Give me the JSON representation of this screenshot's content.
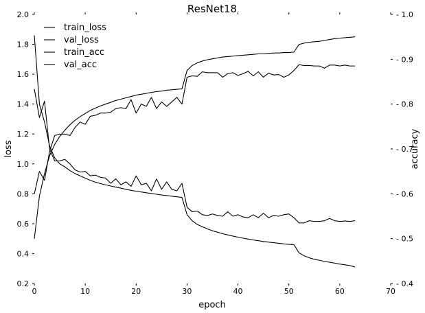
{
  "chart_data": {
    "type": "line",
    "title": "ResNet18",
    "xlabel": "epoch",
    "ylabel_left": "loss",
    "ylabel_right": "accuracy",
    "xlim": [
      0,
      70
    ],
    "ylim_left": [
      0.2,
      2.0
    ],
    "ylim_right": [
      0.4,
      1.0
    ],
    "xticks": [
      0,
      10,
      20,
      30,
      40,
      50,
      60,
      70
    ],
    "yticks_left": [
      0.2,
      0.4,
      0.6,
      0.8,
      1.0,
      1.2,
      1.4,
      1.6,
      1.8,
      2.0
    ],
    "yticks_right": [
      0.4,
      0.5,
      0.6,
      0.7,
      0.8,
      0.9,
      1.0
    ],
    "grid": false,
    "legend_position": "top-left",
    "line_color": "#000000",
    "series": [
      {
        "name": "train_loss",
        "axis": "left",
        "x": [
          0,
          1,
          2,
          3,
          4,
          5,
          6,
          7,
          8,
          9,
          10,
          11,
          12,
          13,
          14,
          15,
          16,
          17,
          18,
          19,
          20,
          21,
          22,
          23,
          24,
          25,
          26,
          27,
          28,
          29,
          30,
          31,
          32,
          33,
          34,
          35,
          36,
          37,
          38,
          39,
          40,
          41,
          42,
          43,
          44,
          45,
          46,
          47,
          48,
          49,
          50,
          51,
          52,
          53,
          54,
          55,
          56,
          57,
          58,
          59,
          60,
          61,
          62,
          63
        ],
        "values": [
          1.86,
          1.4,
          1.28,
          1.12,
          1.04,
          1.0,
          0.98,
          0.955,
          0.935,
          0.92,
          0.905,
          0.89,
          0.878,
          0.868,
          0.86,
          0.852,
          0.845,
          0.838,
          0.83,
          0.823,
          0.817,
          0.812,
          0.807,
          0.802,
          0.797,
          0.792,
          0.788,
          0.784,
          0.78,
          0.776,
          0.66,
          0.62,
          0.595,
          0.58,
          0.565,
          0.553,
          0.543,
          0.533,
          0.525,
          0.517,
          0.51,
          0.503,
          0.497,
          0.491,
          0.486,
          0.481,
          0.477,
          0.473,
          0.469,
          0.465,
          0.462,
          0.459,
          0.405,
          0.385,
          0.372,
          0.362,
          0.355,
          0.348,
          0.342,
          0.336,
          0.33,
          0.325,
          0.32,
          0.31
        ]
      },
      {
        "name": "val_loss",
        "axis": "left",
        "x": [
          0,
          1,
          2,
          3,
          4,
          5,
          6,
          7,
          8,
          9,
          10,
          11,
          12,
          13,
          14,
          15,
          16,
          17,
          18,
          19,
          20,
          21,
          22,
          23,
          24,
          25,
          26,
          27,
          28,
          29,
          30,
          31,
          32,
          33,
          34,
          35,
          36,
          37,
          38,
          39,
          40,
          41,
          42,
          43,
          44,
          45,
          46,
          47,
          48,
          49,
          50,
          51,
          52,
          53,
          54,
          55,
          56,
          57,
          58,
          59,
          60,
          61,
          62,
          63
        ],
        "values": [
          1.5,
          1.31,
          1.42,
          1.1,
          1.02,
          1.02,
          1.03,
          1.0,
          0.96,
          0.945,
          0.95,
          0.92,
          0.925,
          0.91,
          0.905,
          0.87,
          0.9,
          0.86,
          0.88,
          0.85,
          0.92,
          0.86,
          0.87,
          0.82,
          0.9,
          0.83,
          0.88,
          0.83,
          0.82,
          0.87,
          0.71,
          0.68,
          0.685,
          0.66,
          0.655,
          0.665,
          0.655,
          0.65,
          0.68,
          0.65,
          0.66,
          0.645,
          0.64,
          0.66,
          0.64,
          0.67,
          0.64,
          0.655,
          0.65,
          0.66,
          0.665,
          0.64,
          0.605,
          0.605,
          0.62,
          0.615,
          0.615,
          0.62,
          0.635,
          0.62,
          0.615,
          0.618,
          0.615,
          0.62
        ]
      },
      {
        "name": "train_acc",
        "axis": "right",
        "x": [
          0,
          1,
          2,
          3,
          4,
          5,
          6,
          7,
          8,
          9,
          10,
          11,
          12,
          13,
          14,
          15,
          16,
          17,
          18,
          19,
          20,
          21,
          22,
          23,
          24,
          25,
          26,
          27,
          28,
          29,
          30,
          31,
          32,
          33,
          34,
          35,
          36,
          37,
          38,
          39,
          40,
          41,
          42,
          43,
          44,
          45,
          46,
          47,
          48,
          49,
          50,
          51,
          52,
          53,
          54,
          55,
          56,
          57,
          58,
          59,
          60,
          61,
          62,
          63
        ],
        "values": [
          0.5,
          0.595,
          0.645,
          0.685,
          0.71,
          0.728,
          0.742,
          0.754,
          0.764,
          0.772,
          0.779,
          0.786,
          0.791,
          0.796,
          0.8,
          0.804,
          0.808,
          0.811,
          0.814,
          0.817,
          0.82,
          0.822,
          0.824,
          0.826,
          0.828,
          0.829,
          0.831,
          0.832,
          0.833,
          0.834,
          0.875,
          0.886,
          0.892,
          0.896,
          0.899,
          0.901,
          0.903,
          0.905,
          0.906,
          0.907,
          0.908,
          0.909,
          0.91,
          0.911,
          0.912,
          0.912,
          0.913,
          0.914,
          0.914,
          0.915,
          0.915,
          0.916,
          0.933,
          0.936,
          0.938,
          0.939,
          0.94,
          0.942,
          0.944,
          0.946,
          0.947,
          0.948,
          0.949,
          0.95
        ]
      },
      {
        "name": "val_acc",
        "axis": "right",
        "x": [
          0,
          1,
          2,
          3,
          4,
          5,
          6,
          7,
          8,
          9,
          10,
          11,
          12,
          13,
          14,
          15,
          16,
          17,
          18,
          19,
          20,
          21,
          22,
          23,
          24,
          25,
          26,
          27,
          28,
          29,
          30,
          31,
          32,
          33,
          34,
          35,
          36,
          37,
          38,
          39,
          40,
          41,
          42,
          43,
          44,
          45,
          46,
          47,
          48,
          49,
          50,
          51,
          52,
          53,
          54,
          55,
          56,
          57,
          58,
          59,
          60,
          61,
          62,
          63
        ],
        "values": [
          0.6,
          0.65,
          0.63,
          0.695,
          0.73,
          0.733,
          0.733,
          0.73,
          0.748,
          0.76,
          0.755,
          0.773,
          0.775,
          0.78,
          0.78,
          0.782,
          0.79,
          0.792,
          0.79,
          0.81,
          0.78,
          0.8,
          0.795,
          0.815,
          0.79,
          0.805,
          0.795,
          0.805,
          0.815,
          0.8,
          0.86,
          0.863,
          0.862,
          0.872,
          0.87,
          0.87,
          0.87,
          0.86,
          0.868,
          0.87,
          0.864,
          0.868,
          0.873,
          0.863,
          0.872,
          0.86,
          0.869,
          0.865,
          0.866,
          0.86,
          0.865,
          0.875,
          0.888,
          0.886,
          0.886,
          0.885,
          0.885,
          0.88,
          0.887,
          0.887,
          0.885,
          0.887,
          0.885,
          0.885
        ]
      }
    ]
  }
}
